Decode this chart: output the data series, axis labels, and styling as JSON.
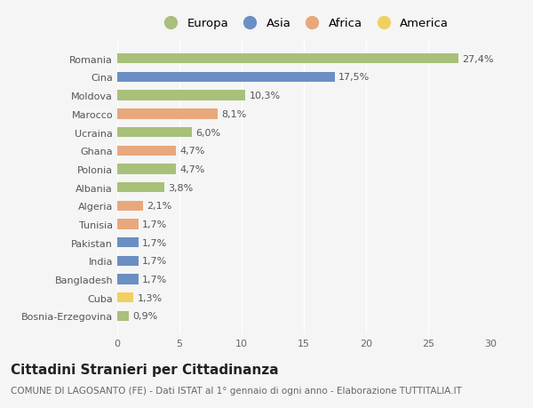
{
  "countries": [
    "Romania",
    "Cina",
    "Moldova",
    "Marocco",
    "Ucraina",
    "Ghana",
    "Polonia",
    "Albania",
    "Algeria",
    "Tunisia",
    "Pakistan",
    "India",
    "Bangladesh",
    "Cuba",
    "Bosnia-Erzegovina"
  ],
  "values": [
    27.4,
    17.5,
    10.3,
    8.1,
    6.0,
    4.7,
    4.7,
    3.8,
    2.1,
    1.7,
    1.7,
    1.7,
    1.7,
    1.3,
    0.9
  ],
  "labels": [
    "27,4%",
    "17,5%",
    "10,3%",
    "8,1%",
    "6,0%",
    "4,7%",
    "4,7%",
    "3,8%",
    "2,1%",
    "1,7%",
    "1,7%",
    "1,7%",
    "1,7%",
    "1,3%",
    "0,9%"
  ],
  "continents": [
    "Europa",
    "Asia",
    "Europa",
    "Africa",
    "Europa",
    "Africa",
    "Europa",
    "Europa",
    "Africa",
    "Africa",
    "Asia",
    "Asia",
    "Asia",
    "America",
    "Europa"
  ],
  "colors": {
    "Europa": "#a8c07a",
    "Asia": "#6b8fc4",
    "Africa": "#e8a87c",
    "America": "#f0d060"
  },
  "legend_order": [
    "Europa",
    "Asia",
    "Africa",
    "America"
  ],
  "title": "Cittadini Stranieri per Cittadinanza",
  "subtitle": "COMUNE DI LAGOSANTO (FE) - Dati ISTAT al 1° gennaio di ogni anno - Elaborazione TUTTITALIA.IT",
  "xlim": [
    0,
    30
  ],
  "xticks": [
    0,
    5,
    10,
    15,
    20,
    25,
    30
  ],
  "background_color": "#f5f5f5",
  "bar_height": 0.55,
  "label_fontsize": 8,
  "tick_fontsize": 8,
  "title_fontsize": 11,
  "subtitle_fontsize": 7.5
}
